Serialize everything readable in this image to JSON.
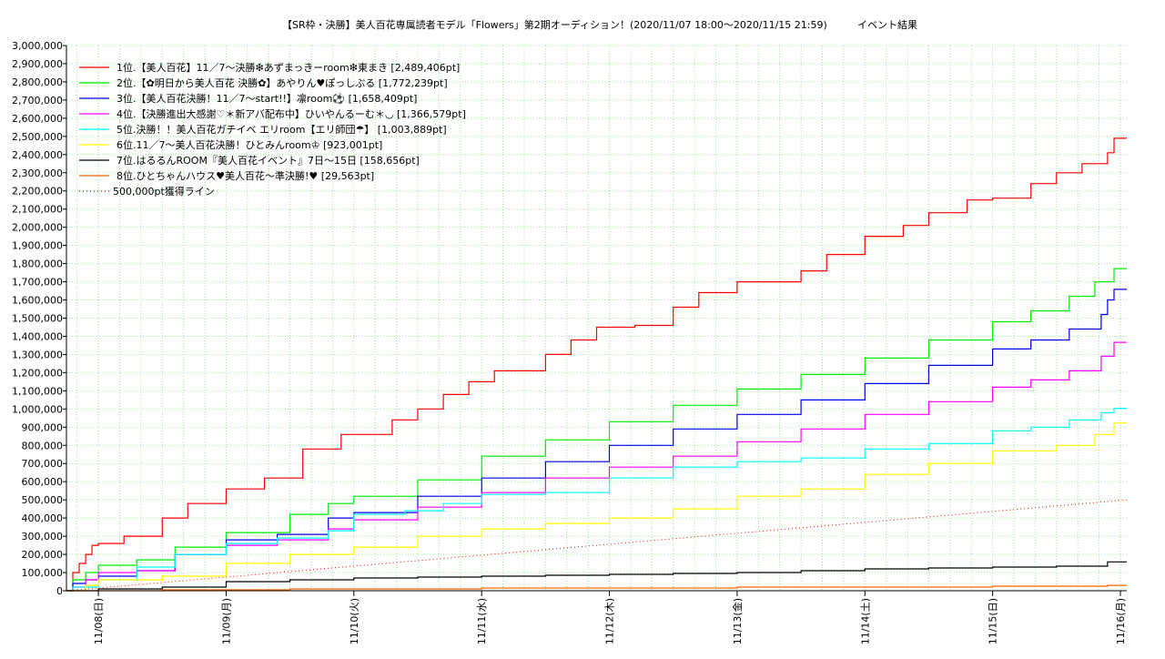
{
  "chart_data": {
    "type": "line",
    "title": "【SR枠・決勝】美人百花専属読者モデル「Flowers」第2期オーディション！(2020/11/07 18:00～2020/11/15 21:59)",
    "subtitle": "イベント結果",
    "xlabel": "",
    "ylabel": "",
    "x_ticks": [
      "11/08(日)",
      "11/09(月)",
      "11/10(火)",
      "11/11(水)",
      "11/12(木)",
      "11/13(金)",
      "11/14(土)",
      "11/15(日)",
      "11/16(月)"
    ],
    "x_range_days": [
      -0.25,
      8.05
    ],
    "ylim": [
      0,
      3000000
    ],
    "y_ticks": [
      0,
      100000,
      200000,
      300000,
      400000,
      500000,
      600000,
      700000,
      800000,
      900000,
      1000000,
      1100000,
      1200000,
      1300000,
      1400000,
      1500000,
      1600000,
      1700000,
      1800000,
      1900000,
      2000000,
      2100000,
      2200000,
      2300000,
      2400000,
      2500000,
      2600000,
      2700000,
      2800000,
      2900000,
      3000000
    ],
    "y_tick_labels": [
      "0",
      "100,000",
      "200,000",
      "300,000",
      "400,000",
      "500,000",
      "600,000",
      "700,000",
      "800,000",
      "900,000",
      "1,000,000",
      "1,100,000",
      "1,200,000",
      "1,300,000",
      "1,400,000",
      "1,500,000",
      "1,600,000",
      "1,700,000",
      "1,800,000",
      "1,900,000",
      "2,000,000",
      "2,100,000",
      "2,200,000",
      "2,300,000",
      "2,400,000",
      "2,500,000",
      "2,600,000",
      "2,700,000",
      "2,800,000",
      "2,900,000",
      "3,000,000"
    ],
    "grid": true,
    "legend_position": "top-left",
    "series": [
      {
        "name": "1位.【美人百花】11／7～決勝❇あずまっきーroom❇東まき [2,489,406pt]",
        "color": "#ff0000",
        "x": [
          -0.25,
          -0.2,
          -0.15,
          -0.1,
          -0.05,
          0.0,
          0.2,
          0.5,
          0.7,
          1.0,
          1.3,
          1.6,
          1.9,
          2.3,
          2.5,
          2.7,
          2.9,
          3.1,
          3.5,
          3.7,
          3.9,
          4.2,
          4.5,
          4.7,
          5.0,
          5.5,
          5.7,
          6.0,
          6.3,
          6.5,
          6.8,
          7.0,
          7.3,
          7.5,
          7.7,
          7.9,
          7.95,
          8.05
        ],
        "y": [
          0,
          100000,
          150000,
          200000,
          250000,
          260000,
          300000,
          400000,
          480000,
          560000,
          620000,
          780000,
          860000,
          940000,
          1000000,
          1080000,
          1150000,
          1210000,
          1300000,
          1380000,
          1450000,
          1460000,
          1560000,
          1640000,
          1700000,
          1760000,
          1850000,
          1950000,
          2010000,
          2080000,
          2150000,
          2160000,
          2240000,
          2300000,
          2350000,
          2410000,
          2489406,
          2489406
        ]
      },
      {
        "name": "2位.【✿明日から美人百花 決勝✿】あやりん♥ぽっしぶる [1,772,239pt]",
        "color": "#00ee00",
        "x": [
          -0.25,
          -0.2,
          -0.1,
          0.0,
          0.3,
          0.6,
          1.0,
          1.5,
          1.8,
          2.0,
          2.5,
          3.0,
          3.5,
          4.0,
          4.5,
          5.0,
          5.5,
          6.0,
          6.5,
          7.0,
          7.3,
          7.6,
          7.8,
          7.95,
          8.05
        ],
        "y": [
          0,
          60000,
          100000,
          140000,
          170000,
          240000,
          320000,
          420000,
          480000,
          520000,
          610000,
          740000,
          830000,
          930000,
          1020000,
          1110000,
          1190000,
          1280000,
          1380000,
          1480000,
          1540000,
          1620000,
          1700000,
          1772239,
          1772239
        ]
      },
      {
        "name": "3位.【美人百花決勝！11／7～start!!】凛room⚽ [1,658,409pt]",
        "color": "#0000ee",
        "x": [
          -0.25,
          -0.2,
          -0.1,
          0.0,
          0.3,
          0.6,
          1.0,
          1.4,
          1.8,
          2.0,
          2.5,
          3.0,
          3.5,
          4.0,
          4.5,
          5.0,
          5.5,
          6.0,
          6.5,
          7.0,
          7.3,
          7.6,
          7.85,
          7.9,
          7.95,
          8.05
        ],
        "y": [
          0,
          40000,
          60000,
          80000,
          110000,
          200000,
          280000,
          310000,
          400000,
          430000,
          520000,
          620000,
          710000,
          800000,
          890000,
          970000,
          1050000,
          1140000,
          1240000,
          1330000,
          1380000,
          1440000,
          1520000,
          1600000,
          1658409,
          1658409
        ]
      },
      {
        "name": "4位.【決勝進出大感謝♡＊新アバ配布中】ひいやんるーむ＊◡ [1,366,579pt]",
        "color": "#ff00ff",
        "x": [
          -0.25,
          -0.2,
          -0.1,
          0.0,
          0.3,
          0.6,
          1.0,
          1.4,
          1.8,
          2.0,
          2.5,
          3.0,
          3.5,
          4.0,
          4.5,
          5.0,
          5.5,
          6.0,
          6.5,
          7.0,
          7.3,
          7.6,
          7.85,
          7.95,
          8.05
        ],
        "y": [
          0,
          20000,
          60000,
          100000,
          110000,
          200000,
          250000,
          280000,
          340000,
          390000,
          460000,
          540000,
          620000,
          680000,
          740000,
          820000,
          890000,
          970000,
          1040000,
          1120000,
          1160000,
          1210000,
          1290000,
          1366579,
          1366579
        ]
      },
      {
        "name": "5位.決勝！！美人百花ガチイベ エリroom【エリ師団☂】 [1,003,889pt]",
        "color": "#00ffff",
        "x": [
          -0.25,
          -0.2,
          0.0,
          0.3,
          0.6,
          1.0,
          1.4,
          1.8,
          2.0,
          2.4,
          2.7,
          3.0,
          3.5,
          3.9,
          4.0,
          4.5,
          5.0,
          5.5,
          6.0,
          6.5,
          7.0,
          7.3,
          7.6,
          7.85,
          7.95,
          8.05
        ],
        "y": [
          0,
          20000,
          60000,
          130000,
          200000,
          260000,
          290000,
          330000,
          420000,
          440000,
          480000,
          530000,
          540000,
          540000,
          620000,
          680000,
          710000,
          730000,
          780000,
          810000,
          880000,
          900000,
          940000,
          980000,
          1003889,
          1003889
        ]
      },
      {
        "name": "6位.11／7～美人百花決勝！ひとみんroom♔ [923,001pt]",
        "color": "#ffff00",
        "x": [
          -0.25,
          -0.1,
          0.0,
          0.5,
          1.0,
          1.5,
          2.0,
          2.5,
          3.0,
          3.5,
          4.0,
          4.5,
          5.0,
          5.5,
          6.0,
          6.5,
          7.0,
          7.5,
          7.8,
          7.95,
          8.05
        ],
        "y": [
          0,
          30000,
          60000,
          80000,
          150000,
          200000,
          240000,
          300000,
          340000,
          370000,
          400000,
          450000,
          520000,
          560000,
          640000,
          700000,
          770000,
          800000,
          860000,
          923001,
          923001
        ]
      },
      {
        "name": "7位.はるるんROOM『美人百花イベント』7日～15日 [158,656pt]",
        "color": "#000000",
        "x": [
          -0.25,
          0.0,
          0.5,
          1.0,
          1.5,
          2.0,
          2.5,
          3.0,
          3.5,
          4.0,
          4.5,
          5.0,
          5.5,
          6.0,
          6.5,
          7.0,
          7.5,
          7.9,
          8.05
        ],
        "y": [
          0,
          10000,
          20000,
          50000,
          60000,
          70000,
          75000,
          80000,
          85000,
          90000,
          95000,
          100000,
          110000,
          120000,
          125000,
          130000,
          135000,
          158656,
          158656
        ]
      },
      {
        "name": "8位.ひとちゃんハウス♥美人百花～準決勝!♥ [29,563pt]",
        "color": "#ff6600",
        "x": [
          -0.25,
          0.5,
          1.5,
          3.0,
          5.0,
          7.0,
          7.9,
          8.05
        ],
        "y": [
          0,
          5000,
          10000,
          15000,
          20000,
          25000,
          29563,
          29563
        ]
      },
      {
        "name": "500,000pt獲得ライン",
        "color": "#ff0000",
        "dashed": true,
        "x": [
          -0.25,
          8.05
        ],
        "y": [
          0,
          500000
        ]
      }
    ]
  }
}
